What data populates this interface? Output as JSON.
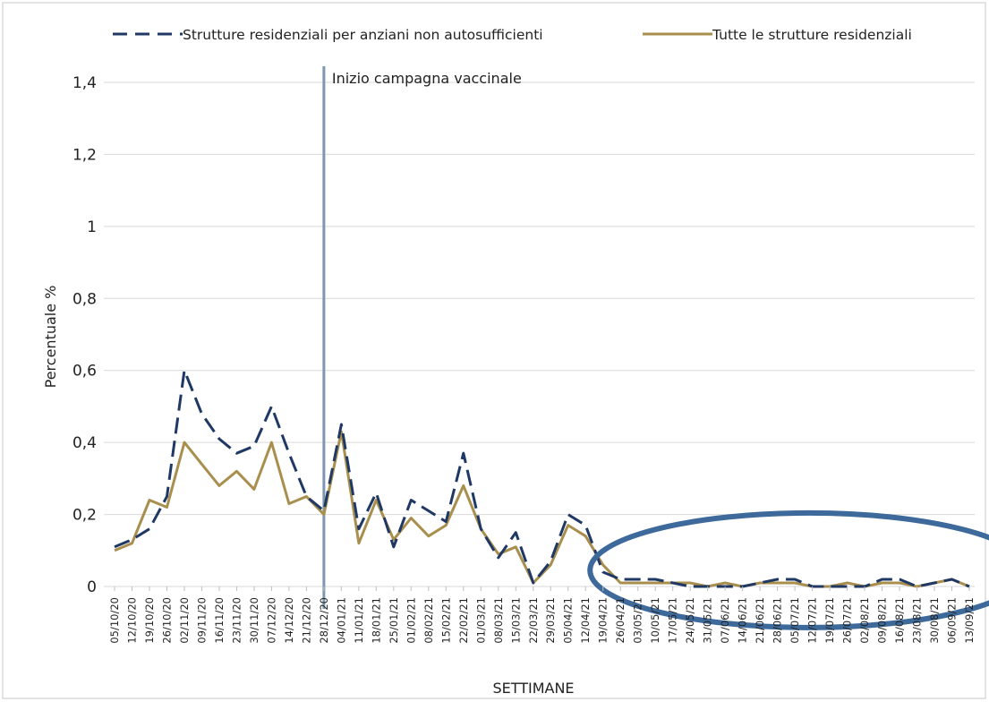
{
  "chart_data": {
    "type": "line",
    "title": "",
    "xlabel": "SETTIMANE",
    "ylabel": "Percentuale %",
    "ylim": [
      0,
      1.4
    ],
    "yticks": [
      {
        "value": 0,
        "label": "0"
      },
      {
        "value": 0.2,
        "label": "0,2"
      },
      {
        "value": 0.4,
        "label": "0,4"
      },
      {
        "value": 0.6,
        "label": "0,6"
      },
      {
        "value": 0.8,
        "label": "0,8"
      },
      {
        "value": 1,
        "label": "1"
      },
      {
        "value": 1.2,
        "label": "1,2"
      },
      {
        "value": 1.4,
        "label": "1,4"
      }
    ],
    "grid": "horizontal",
    "legend_position": "top",
    "x": [
      "05/10/20",
      "12/10/20",
      "19/10/20",
      "26/10/20",
      "02/11/20",
      "09/11/20",
      "16/11/20",
      "23/11/20",
      "30/11/20",
      "07/12/20",
      "14/12/20",
      "21/12/20",
      "28/12/20",
      "04/01/21",
      "11/01/21",
      "18/01/21",
      "25/01/21",
      "01/02/21",
      "08/02/21",
      "15/02/21",
      "22/02/21",
      "01/03/21",
      "08/03/21",
      "15/03/21",
      "22/03/21",
      "29/03/21",
      "05/04/21",
      "12/04/21",
      "19/04/21",
      "26/04/21",
      "03/05/21",
      "10/05/21",
      "17/05/21",
      "24/05/21",
      "31/05/21",
      "07/06/21",
      "14/06/21",
      "21/06/21",
      "28/06/21",
      "05/07/21",
      "12/07/21",
      "19/07/21",
      "26/07/21",
      "02/08/21",
      "09/08/21",
      "16/08/21",
      "23/08/21",
      "30/08/21",
      "06/09/21",
      "13/09/21"
    ],
    "x_tick_labels": [
      "05/10/20",
      "12/10/20",
      "19/10/20",
      "26/10/20",
      "02/11/20",
      "09/11/20",
      "16/11/20",
      "23/11/20",
      "30/11/20",
      "07/12/20",
      "14/12/20",
      "21/12/20",
      "28/12/20",
      "04/01/21",
      "11/01/21",
      "18/01/21",
      "25/01/21",
      "01/02/21",
      "08/02/21",
      "15/02/21",
      "22/02/21",
      "01/03/21",
      "08/03/21",
      "15/03/21",
      "22/03/21",
      "29/03/21",
      "05/04/21",
      "12/04/21",
      "19/04/21",
      "26/04/21",
      "03/05/21",
      "10/05/21",
      "17/05/21",
      "24/05/21",
      "31/05/21",
      "07/06/21",
      "14/06/21",
      "21/06/21",
      "28/06/21",
      "05/07/21",
      "12/07/21",
      "19/07/21",
      "26/07/21",
      "02/08/21",
      "09/08/21",
      "16/08/21",
      "23/08/21",
      "30/08/21",
      "06/09/21",
      "13/09/21"
    ],
    "series": [
      {
        "name": "Strutture residenziali per anziani non autosufficienti",
        "color": "#1f3864",
        "dash": "dashed",
        "values": [
          0.11,
          0.13,
          0.16,
          0.25,
          0.6,
          0.48,
          0.41,
          0.37,
          0.39,
          0.5,
          0.37,
          0.25,
          0.21,
          0.45,
          0.16,
          0.26,
          0.11,
          0.24,
          0.21,
          0.18,
          0.37,
          0.16,
          0.08,
          0.15,
          0.01,
          0.07,
          0.2,
          0.17,
          0.04,
          0.02,
          0.02,
          0.02,
          0.01,
          0.0,
          0.0,
          0.0,
          0.0,
          0.01,
          0.02,
          0.02,
          0.0,
          0.0,
          0.0,
          0.0,
          0.02,
          0.02,
          0.0,
          0.01,
          0.02,
          0.0
        ]
      },
      {
        "name": "Tutte le strutture residenziali",
        "color": "#a88f4e",
        "dash": "solid",
        "values": [
          0.1,
          0.12,
          0.24,
          0.22,
          0.4,
          0.34,
          0.28,
          0.32,
          0.27,
          0.4,
          0.23,
          0.25,
          0.2,
          0.43,
          0.12,
          0.24,
          0.13,
          0.19,
          0.14,
          0.17,
          0.28,
          0.16,
          0.09,
          0.11,
          0.01,
          0.06,
          0.17,
          0.14,
          0.06,
          0.01,
          0.01,
          0.01,
          0.01,
          0.01,
          0.0,
          0.01,
          0.0,
          0.01,
          0.01,
          0.01,
          0.0,
          0.0,
          0.01,
          0.0,
          0.01,
          0.01,
          0.0,
          0.01,
          0.02,
          0.0
        ]
      }
    ],
    "annotations": [
      {
        "text": "Inizio campagna vaccinale",
        "x": "28/12/20",
        "type": "vertical-line",
        "color": "#7f96b0"
      },
      {
        "type": "ellipse-highlight",
        "from": "26/04/21",
        "to": "13/09/21",
        "color": "#3d6a9b"
      }
    ]
  }
}
